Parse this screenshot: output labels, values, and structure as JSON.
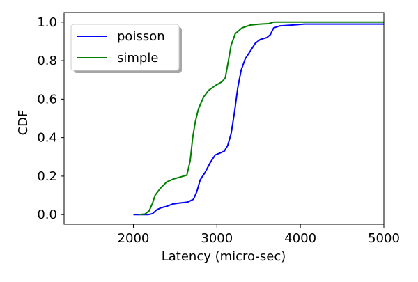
{
  "chart_data": {
    "type": "line",
    "xlabel": "Latency (micro-sec)",
    "ylabel": "CDF",
    "xlim": [
      1170,
      5000
    ],
    "ylim": [
      -0.05,
      1.05
    ],
    "xticks": [
      2000,
      3000,
      4000,
      5000
    ],
    "yticks": [
      0.0,
      0.2,
      0.4,
      0.6,
      0.8,
      1.0
    ],
    "xtick_labels": [
      "2000",
      "3000",
      "4000",
      "5000"
    ],
    "ytick_labels": [
      "0.0",
      "0.2",
      "0.4",
      "0.6",
      "0.8",
      "1.0"
    ],
    "grid": false,
    "legend_position": "upper-left",
    "series": [
      {
        "name": "poisson",
        "color": "#0000ff",
        "points": [
          [
            2000,
            0.0
          ],
          [
            2180,
            0.0
          ],
          [
            2230,
            0.005
          ],
          [
            2280,
            0.025
          ],
          [
            2330,
            0.035
          ],
          [
            2400,
            0.043
          ],
          [
            2470,
            0.055
          ],
          [
            2550,
            0.06
          ],
          [
            2650,
            0.065
          ],
          [
            2720,
            0.08
          ],
          [
            2760,
            0.12
          ],
          [
            2800,
            0.18
          ],
          [
            2860,
            0.22
          ],
          [
            2920,
            0.27
          ],
          [
            2980,
            0.31
          ],
          [
            3040,
            0.32
          ],
          [
            3090,
            0.33
          ],
          [
            3130,
            0.36
          ],
          [
            3170,
            0.42
          ],
          [
            3210,
            0.53
          ],
          [
            3250,
            0.66
          ],
          [
            3290,
            0.75
          ],
          [
            3340,
            0.81
          ],
          [
            3400,
            0.85
          ],
          [
            3460,
            0.89
          ],
          [
            3520,
            0.91
          ],
          [
            3600,
            0.92
          ],
          [
            3640,
            0.935
          ],
          [
            3680,
            0.97
          ],
          [
            3750,
            0.98
          ],
          [
            3900,
            0.985
          ],
          [
            4050,
            0.99
          ],
          [
            5000,
            0.99
          ]
        ]
      },
      {
        "name": "simple",
        "color": "#008000",
        "points": [
          [
            2060,
            0.0
          ],
          [
            2140,
            0.003
          ],
          [
            2190,
            0.02
          ],
          [
            2230,
            0.06
          ],
          [
            2260,
            0.1
          ],
          [
            2330,
            0.14
          ],
          [
            2400,
            0.17
          ],
          [
            2480,
            0.185
          ],
          [
            2560,
            0.195
          ],
          [
            2640,
            0.205
          ],
          [
            2680,
            0.28
          ],
          [
            2710,
            0.4
          ],
          [
            2740,
            0.48
          ],
          [
            2780,
            0.55
          ],
          [
            2840,
            0.61
          ],
          [
            2900,
            0.645
          ],
          [
            2980,
            0.67
          ],
          [
            3060,
            0.69
          ],
          [
            3100,
            0.71
          ],
          [
            3130,
            0.78
          ],
          [
            3170,
            0.88
          ],
          [
            3220,
            0.94
          ],
          [
            3300,
            0.97
          ],
          [
            3400,
            0.985
          ],
          [
            3520,
            0.99
          ],
          [
            3620,
            0.992
          ],
          [
            3680,
            1.0
          ],
          [
            5000,
            1.0
          ]
        ]
      }
    ]
  }
}
